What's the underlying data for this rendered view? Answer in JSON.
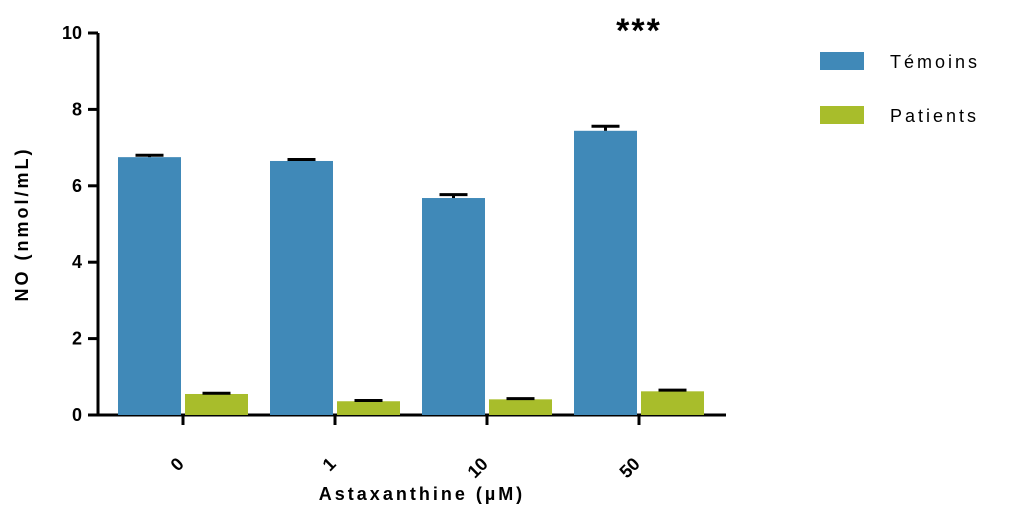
{
  "chart_data": {
    "type": "bar",
    "categories": [
      "0",
      "1",
      "10",
      "50"
    ],
    "series": [
      {
        "name": "Témoins",
        "color": "#4089b8",
        "values": [
          6.75,
          6.65,
          5.68,
          7.44
        ],
        "errors": [
          0.05,
          0.04,
          0.09,
          0.12
        ]
      },
      {
        "name": "Patients",
        "color": "#a8bd2b",
        "values": [
          0.55,
          0.36,
          0.41,
          0.62
        ],
        "errors": [
          0.02,
          0.02,
          0.02,
          0.03
        ]
      }
    ],
    "title": "",
    "xlabel": "Astaxanthine (µM)",
    "ylabel": "NO (nmol/mL)",
    "ylim": [
      0,
      10
    ],
    "yticks": [
      "0",
      "2",
      "4",
      "6",
      "8",
      "10"
    ],
    "annotations": [
      {
        "text": "***",
        "category": "50"
      }
    ],
    "legend": "right",
    "grid": false
  }
}
